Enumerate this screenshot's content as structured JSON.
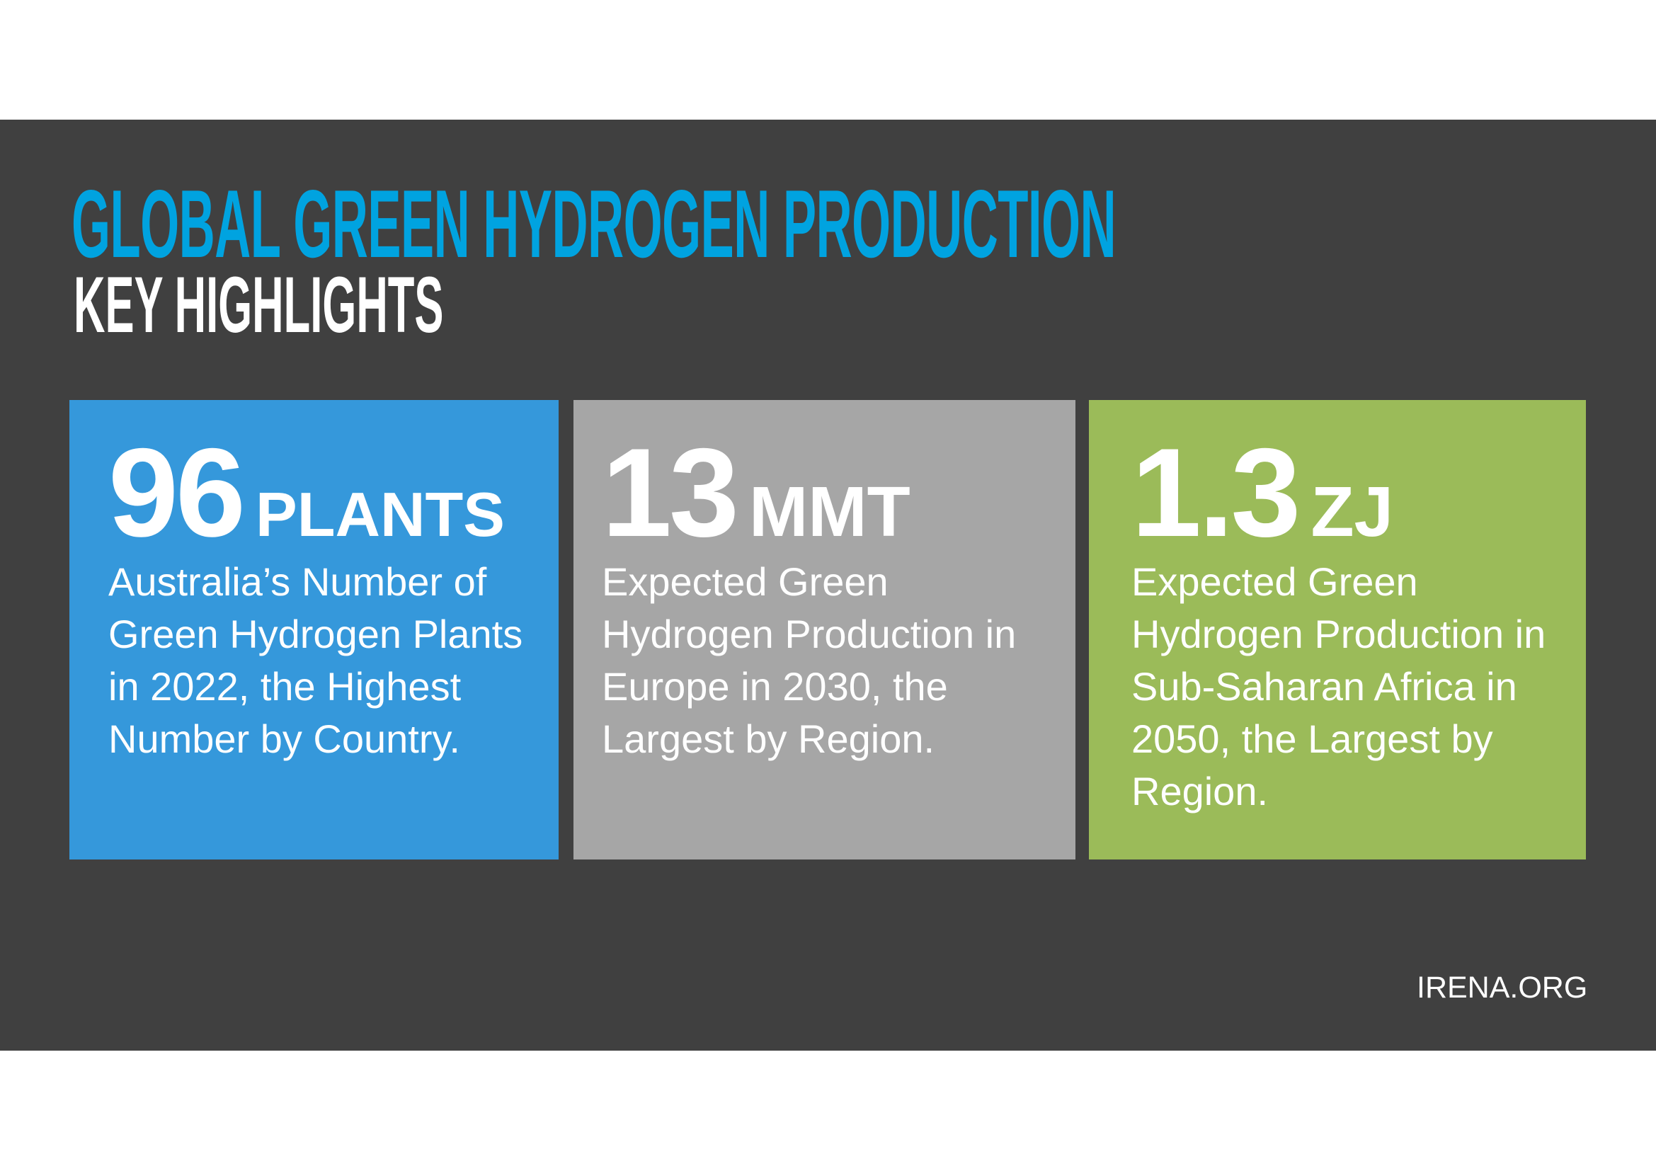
{
  "header": {
    "title": "GLOBAL GREEN HYDROGEN PRODUCTION",
    "subtitle": "KEY HIGHLIGHTS"
  },
  "colors": {
    "background": "#404040",
    "title": "#00a3e0",
    "card_blue": "#3598db",
    "card_gray": "#a6a6a6",
    "card_green": "#9bbb59"
  },
  "cards": [
    {
      "value": "96",
      "unit": "PLANTS",
      "description": "Australia’s Number of Green Hydrogen Plants in 2022, the Highest Number by Country."
    },
    {
      "value": "13",
      "unit": "MMT",
      "description": "Expected Green Hydrogen Production in Europe in 2030, the Largest by Region."
    },
    {
      "value": "1.3",
      "unit": "ZJ",
      "description": "Expected Green Hydrogen Production in Sub-Saharan Africa in 2050, the Largest by Region."
    }
  ],
  "footer": {
    "source": "IRENA.ORG"
  }
}
